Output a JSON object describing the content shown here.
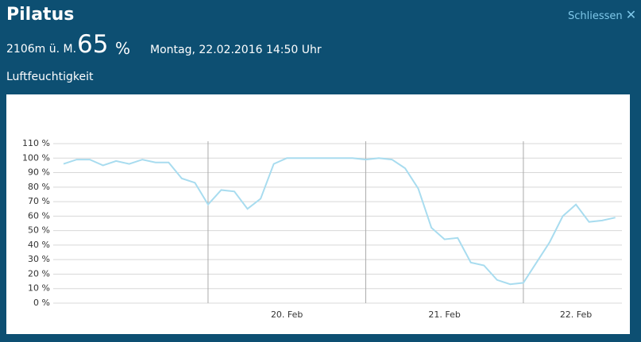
{
  "header": {
    "title": "Pilatus",
    "elevation": "2106m ü. M.",
    "reading": "65",
    "unit": "%",
    "timestamp": "Montag, 22.02.2016 14:50 Uhr",
    "close": "Schliessen",
    "measure": "Luftfeuchtigkeit"
  },
  "chart_data": {
    "type": "line",
    "categories": [
      null,
      null,
      null,
      null,
      null,
      null,
      null,
      null,
      null,
      null,
      null,
      null,
      null,
      null,
      null,
      null,
      null,
      "20. Feb",
      null,
      null,
      null,
      null,
      null,
      null,
      null,
      null,
      null,
      null,
      null,
      "21. Feb",
      null,
      null,
      null,
      null,
      null,
      null,
      null,
      null,
      null,
      "22. Feb",
      null,
      null,
      null
    ],
    "series": [
      {
        "name": "Luftfeuchtigkeit",
        "color": "#a8dcef",
        "values": [
          96,
          99,
          99,
          95,
          98,
          96,
          99,
          97,
          97,
          86,
          83,
          68,
          78,
          77,
          65,
          72,
          96,
          100,
          100,
          100,
          100,
          100,
          100,
          99,
          100,
          99,
          93,
          79,
          52,
          44,
          45,
          28,
          26,
          16,
          13,
          14,
          28,
          42,
          60,
          68,
          56,
          57,
          59
        ]
      }
    ],
    "ylim": [
      0,
      110
    ],
    "yticks": [
      {
        "value": 0,
        "label": "0 %"
      },
      {
        "value": 10,
        "label": "10 %"
      },
      {
        "value": 20,
        "label": "20 %"
      },
      {
        "value": 30,
        "label": "30 %"
      },
      {
        "value": 40,
        "label": "40 %"
      },
      {
        "value": 50,
        "label": "50 %"
      },
      {
        "value": 60,
        "label": "60 %"
      },
      {
        "value": 70,
        "label": "70 %"
      },
      {
        "value": 80,
        "label": "80 %"
      },
      {
        "value": 90,
        "label": "90 %"
      },
      {
        "value": 100,
        "label": "100 %"
      },
      {
        "value": 110,
        "label": "110 %"
      }
    ],
    "grid": true
  }
}
